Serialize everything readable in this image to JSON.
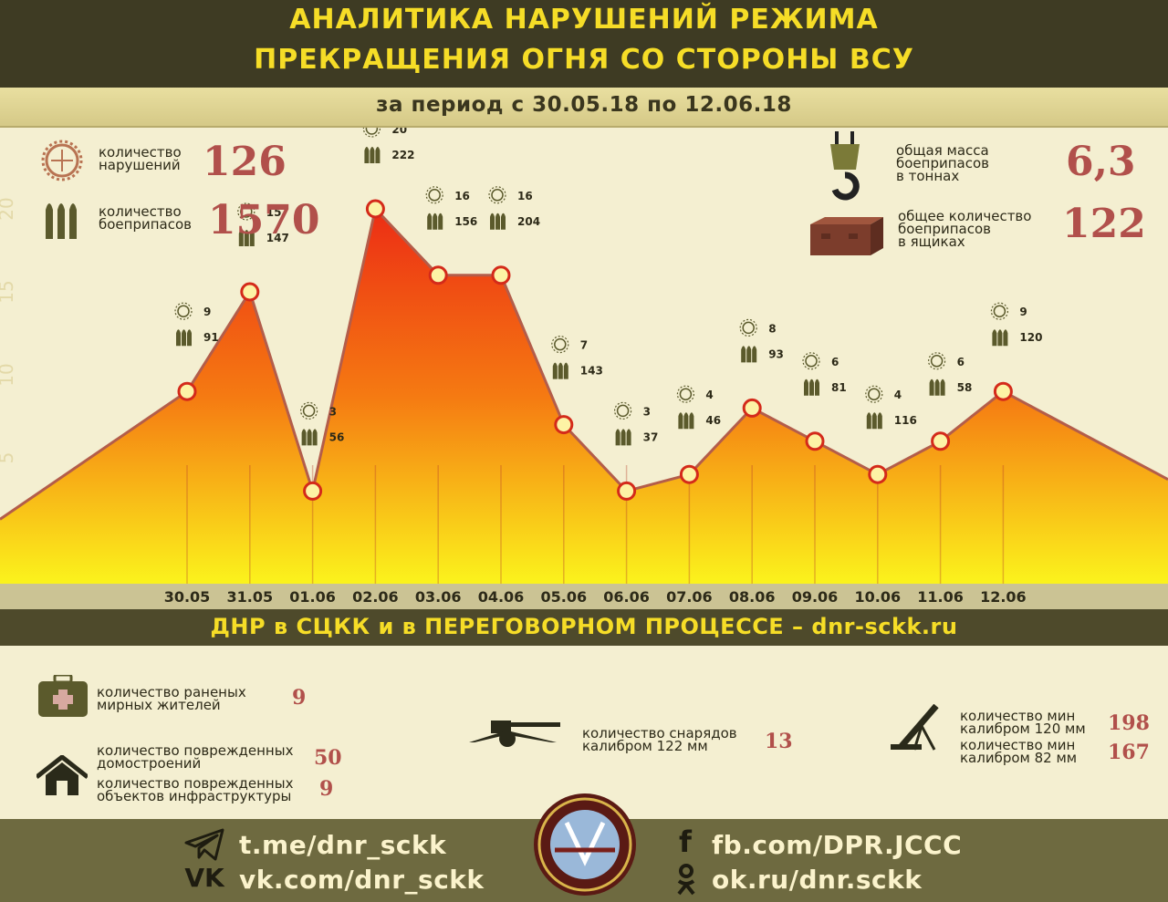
{
  "header": {
    "title_line1": "АНАЛИТИКА НАРУШЕНИЙ РЕЖИМА",
    "title_line2": "ПРЕКРАЩЕНИЯ ОГНЯ СО СТОРОНЫ ВСУ",
    "period": "за период с 30.05.18 по 12.06.18"
  },
  "summary": {
    "violations_label_1": "количество",
    "violations_label_2": "нарушений",
    "violations_value": "126",
    "ammo_label_1": "количество",
    "ammo_label_2": "боеприпасов",
    "ammo_value": "1570",
    "mass_label_1": "общая масса",
    "mass_label_2": "боеприпасов",
    "mass_label_3": "в тоннах",
    "mass_value": "6,3",
    "boxes_label_1": "общее количество",
    "boxes_label_2": "боеприпасов",
    "boxes_label_3": "в ящиках",
    "boxes_value": "122"
  },
  "chart_data": {
    "type": "area",
    "x": [
      "30.05",
      "31.05",
      "01.06",
      "02.06",
      "03.06",
      "04.06",
      "05.06",
      "06.06",
      "07.06",
      "08.06",
      "09.06",
      "10.06",
      "11.06",
      "12.06"
    ],
    "series": [
      {
        "values": [
          9,
          15,
          3,
          20,
          16,
          16,
          7,
          3,
          4,
          8,
          6,
          4,
          6,
          9
        ]
      }
    ],
    "ammo_labels": [
      91,
      147,
      56,
      222,
      156,
      204,
      143,
      37,
      46,
      93,
      81,
      116,
      58,
      120
    ],
    "ylim": [
      0,
      23
    ],
    "yticks": [
      "5",
      "10",
      "15",
      "20"
    ],
    "grid": false
  },
  "banner": "ДНР в СЦКК и в ПЕРЕГОВОРНОМ ПРОЦЕССЕ – dnr-sckk.ru",
  "bottom_stats": {
    "wounded_label_1": "количество раненых",
    "wounded_label_2": "мирных жителей",
    "wounded_value": "9",
    "houses_label_1": "количество поврежденных",
    "houses_label_2": "домостроений",
    "houses_value": "50",
    "infra_label_1": "количество поврежденных",
    "infra_label_2": "объектов инфраструктуры",
    "infra_value": "9",
    "shells_label_1": "количество снарядов",
    "shells_label_2": "калибром 122 мм",
    "shells_value": "13",
    "mines120_label_1": "количество мин",
    "mines120_label_2": "калибром 120 мм",
    "mines120_value": "198",
    "mines82_label_1": "количество мин",
    "mines82_label_2": "калибром 82 мм",
    "mines82_value": "167"
  },
  "footer": {
    "telegram": "t.me/dnr_sckk",
    "vk": "vk.com/dnr_sckk",
    "facebook": "fb.com/DPR.JCCC",
    "ok": "ok.ru/dnr.sckk",
    "vk_icon_text": "VK",
    "fb_icon_text": "f"
  },
  "colors": {
    "header_bg": "#3e3b23",
    "title": "#f6dd27",
    "value_red": "#b1504b",
    "area_top": "#ec2d14",
    "area_bottom": "#fbf31c",
    "footer_bg": "#6e6a40"
  },
  "icons": {
    "violations": "target-icon",
    "ammo": "shells-icon",
    "mass": "crane-hook-icon",
    "boxes": "ammo-box-icon",
    "wounded": "medkit-icon",
    "houses": "house-icon",
    "shells": "howitzer-icon",
    "mines": "mortar-icon",
    "telegram": "telegram-icon",
    "vk": "vk-icon",
    "facebook": "facebook-icon",
    "ok": "odnoklassniki-icon",
    "emblem": "jccc-emblem-icon"
  }
}
